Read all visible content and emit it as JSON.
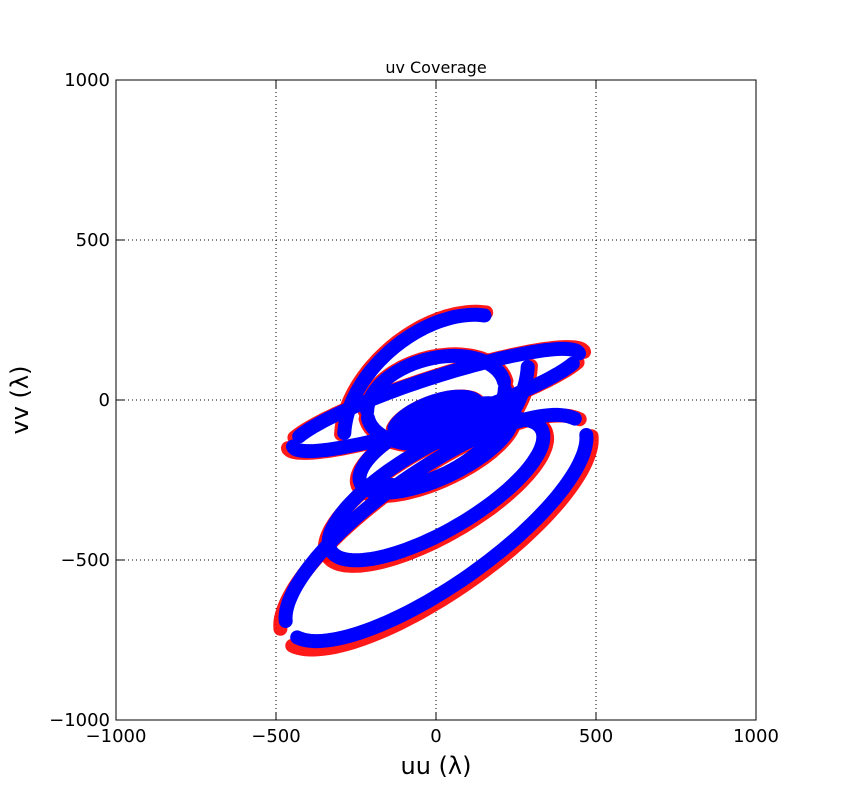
{
  "chart_data": {
    "type": "scatter",
    "title": "uv Coverage",
    "xlabel": "uu (λ)",
    "ylabel": "vv (λ)",
    "xlim": [
      -1000,
      1000
    ],
    "ylim": [
      -1000,
      1000
    ],
    "xticks": [
      -1000,
      -500,
      0,
      500,
      1000
    ],
    "yticks": [
      -1000,
      -500,
      0,
      500,
      1000
    ],
    "xtick_labels": [
      "−1000",
      "−500",
      "0",
      "500",
      "1000"
    ],
    "ytick_labels": [
      "−1000",
      "−500",
      "0",
      "500",
      "1000"
    ],
    "grid": true,
    "colors": {
      "low_frequency": "#ff0000",
      "high_frequency": "#0000ff"
    },
    "tracks": [
      {
        "u0": 0,
        "v0": -400,
        "a": 560,
        "b": 180,
        "theta": 35,
        "t1": 10,
        "t2": 170
      },
      {
        "u0": 0,
        "v0": -400,
        "a": 560,
        "b": 180,
        "theta": 35,
        "t1": 190,
        "t2": 350
      },
      {
        "u0": 0,
        "v0": -280,
        "a": 380,
        "b": 130,
        "theta": 30,
        "t1": 0,
        "t2": 180
      },
      {
        "u0": 0,
        "v0": -280,
        "a": 380,
        "b": 130,
        "theta": 30,
        "t1": 180,
        "t2": 360
      },
      {
        "u0": 0,
        "v0": -150,
        "a": 260,
        "b": 95,
        "theta": 25,
        "t1": 20,
        "t2": 200
      },
      {
        "u0": 0,
        "v0": -150,
        "a": 260,
        "b": 95,
        "theta": 25,
        "t1": 200,
        "t2": 380
      },
      {
        "u0": 0,
        "v0": -60,
        "a": 140,
        "b": 55,
        "theta": 20,
        "t1": 0,
        "t2": 160
      },
      {
        "u0": 0,
        "v0": -60,
        "a": 140,
        "b": 55,
        "theta": 20,
        "t1": 180,
        "t2": 340
      },
      {
        "u0": 0,
        "v0": 0,
        "a": 470,
        "b": 70,
        "theta": 18,
        "t1": 0,
        "t2": 160
      },
      {
        "u0": 0,
        "v0": 0,
        "a": 470,
        "b": 70,
        "theta": 18,
        "t1": 180,
        "t2": 340
      },
      {
        "u0": 0,
        "v0": 0,
        "a": 330,
        "b": 210,
        "theta": 40,
        "t1": 30,
        "t2": 150
      },
      {
        "u0": 0,
        "v0": 0,
        "a": 330,
        "b": 210,
        "theta": 40,
        "t1": 210,
        "t2": 330
      },
      {
        "u0": 0,
        "v0": 0,
        "a": 220,
        "b": 130,
        "theta": 15,
        "t1": 0,
        "t2": 170
      },
      {
        "u0": 0,
        "v0": 0,
        "a": 220,
        "b": 130,
        "theta": 15,
        "t1": 180,
        "t2": 350
      }
    ]
  }
}
